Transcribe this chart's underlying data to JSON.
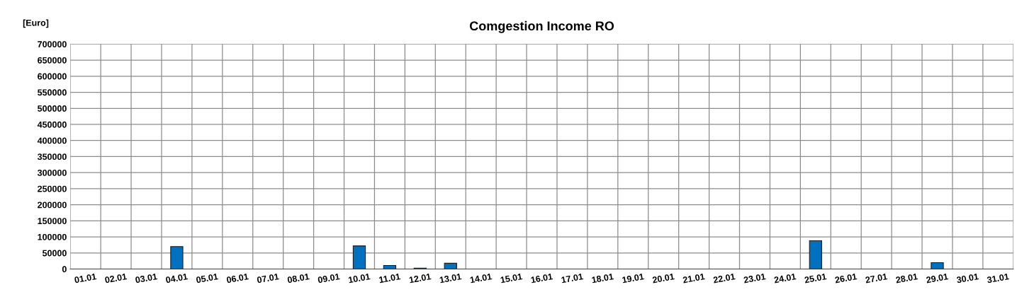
{
  "chart_data": {
    "type": "bar",
    "title": "Comgestion Income RO",
    "ylabel": "[Euro]",
    "categories": [
      "01.01",
      "02.01",
      "03.01",
      "04.01",
      "05.01",
      "06.01",
      "07.01",
      "08.01",
      "09.01",
      "10.01",
      "11.01",
      "12.01",
      "13.01",
      "14.01",
      "15.01",
      "16.01",
      "17.01",
      "18.01",
      "19.01",
      "20.01",
      "21.01",
      "22.01",
      "23.01",
      "24.01",
      "25.01",
      "26.01",
      "27.01",
      "28.01",
      "29.01",
      "30.01",
      "31.01"
    ],
    "values": [
      null,
      null,
      null,
      70000,
      null,
      null,
      null,
      null,
      null,
      72000,
      11000,
      3000,
      18000,
      null,
      null,
      null,
      null,
      null,
      null,
      null,
      null,
      null,
      null,
      null,
      88000,
      null,
      null,
      null,
      20000,
      null,
      null
    ],
    "color": "#0070c0",
    "ylim": [
      0,
      700000
    ],
    "yticks": [
      0,
      50000,
      100000,
      150000,
      200000,
      250000,
      300000,
      350000,
      400000,
      450000,
      500000,
      550000,
      600000,
      650000,
      700000
    ],
    "grid": true
  }
}
